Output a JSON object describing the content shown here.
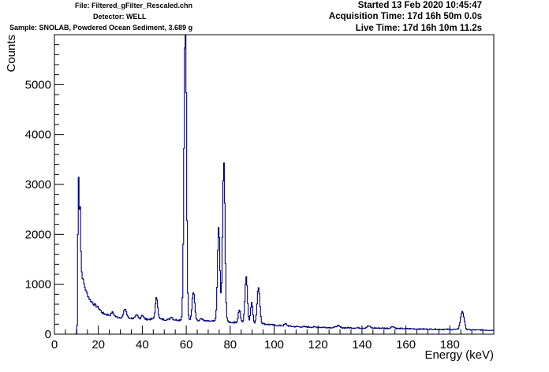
{
  "header": {
    "file": "File: Filtered_gFilter_Rescaled.chn",
    "detector": "Detector: WELL",
    "sample": "Sample: SNOLAB, Powdered Ocean Sediment, 3.689 g",
    "started": "Started 13 Feb 2020 10:45:47",
    "acquisition_time": "Acquisition Time: 17d 16h 50m 0.0s",
    "live_time": "Live Time: 17d 16h 10m 11.2s"
  },
  "chart_data": {
    "type": "line",
    "style": "histogram-step",
    "line_color": "#000080",
    "xlabel": "Energy (keV)",
    "ylabel": "Counts",
    "xlim": [
      0,
      200
    ],
    "ylim": [
      0,
      6000
    ],
    "x_ticks": [
      0,
      20,
      40,
      60,
      80,
      100,
      120,
      140,
      160,
      180
    ],
    "y_ticks": [
      0,
      1000,
      2000,
      3000,
      4000,
      5000
    ],
    "grid": false,
    "baseline_points": [
      [
        10.4,
        0
      ],
      [
        11.6,
        1400
      ],
      [
        12.5,
        1200
      ],
      [
        13.5,
        1000
      ],
      [
        14.5,
        850
      ],
      [
        16,
        700
      ],
      [
        18,
        600
      ],
      [
        20,
        530
      ],
      [
        22,
        420
      ],
      [
        25,
        380
      ],
      [
        27,
        350
      ],
      [
        29,
        340
      ],
      [
        32,
        330
      ],
      [
        35,
        320
      ],
      [
        38,
        315
      ],
      [
        42,
        300
      ],
      [
        45,
        300
      ],
      [
        48,
        300
      ],
      [
        52,
        290
      ],
      [
        55,
        290
      ],
      [
        58,
        280
      ],
      [
        62,
        280
      ],
      [
        65,
        270
      ],
      [
        70,
        260
      ],
      [
        75,
        250
      ],
      [
        80,
        240
      ],
      [
        85,
        230
      ],
      [
        90,
        220
      ],
      [
        95,
        210
      ],
      [
        100,
        180
      ],
      [
        110,
        150
      ],
      [
        120,
        140
      ],
      [
        130,
        130
      ],
      [
        140,
        125
      ],
      [
        150,
        120
      ],
      [
        160,
        110
      ],
      [
        170,
        100
      ],
      [
        180,
        95
      ],
      [
        190,
        85
      ],
      [
        200,
        80
      ]
    ],
    "peaks": [
      {
        "energy": 10.9,
        "counts": 2500,
        "width": 0.25
      },
      {
        "energy": 11.6,
        "counts": 1300,
        "width": 0.3
      },
      {
        "energy": 26.5,
        "counts": 80,
        "width": 0.6
      },
      {
        "energy": 32.2,
        "counts": 180,
        "width": 0.6
      },
      {
        "energy": 37.5,
        "counts": 60,
        "width": 0.5
      },
      {
        "energy": 40.0,
        "counts": 80,
        "width": 0.5
      },
      {
        "energy": 46.5,
        "counts": 430,
        "width": 0.55
      },
      {
        "energy": 53.2,
        "counts": 60,
        "width": 0.5
      },
      {
        "energy": 59.5,
        "counts": 5400,
        "width": 0.55
      },
      {
        "energy": 59.9,
        "counts": 1200,
        "width": 0.35
      },
      {
        "energy": 63.3,
        "counts": 580,
        "width": 0.6
      },
      {
        "energy": 67.0,
        "counts": 50,
        "width": 0.5
      },
      {
        "energy": 74.8,
        "counts": 1900,
        "width": 0.55
      },
      {
        "energy": 77.1,
        "counts": 3200,
        "width": 0.55
      },
      {
        "energy": 84.2,
        "counts": 260,
        "width": 0.5
      },
      {
        "energy": 87.3,
        "counts": 930,
        "width": 0.55
      },
      {
        "energy": 89.8,
        "counts": 420,
        "width": 0.5
      },
      {
        "energy": 92.9,
        "counts": 730,
        "width": 0.6
      },
      {
        "energy": 105.3,
        "counts": 40,
        "width": 0.6
      },
      {
        "energy": 129.0,
        "counts": 40,
        "width": 0.7
      },
      {
        "energy": 143.0,
        "counts": 40,
        "width": 0.7
      },
      {
        "energy": 154.0,
        "counts": 40,
        "width": 0.7
      },
      {
        "energy": 185.7,
        "counts": 370,
        "width": 0.8
      }
    ]
  }
}
